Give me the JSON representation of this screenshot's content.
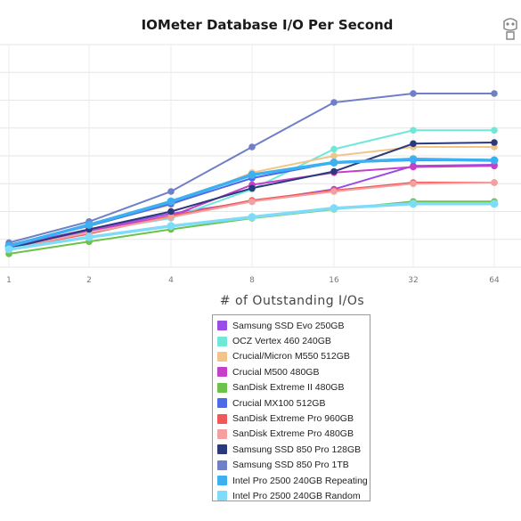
{
  "chart_data": {
    "type": "line",
    "title": "IOMeter Database I/O Per Second",
    "xlabel": "# of Outstanding I/Os",
    "ylabel": "",
    "categories": [
      "1",
      "2",
      "4",
      "8",
      "16",
      "32",
      "64"
    ],
    "ylim": [
      0,
      100000
    ],
    "grid": true,
    "legend_position": "bottom",
    "series": [
      {
        "name": "Samsung SSD Evo 250GB",
        "color": "#9b4be8",
        "values": [
          9500,
          17000,
          24000,
          29500,
          35000,
          45500,
          46000
        ]
      },
      {
        "name": "OCZ Vertex 460 240GB",
        "color": "#6fe8d8",
        "values": [
          9000,
          16000,
          22000,
          35000,
          53000,
          61500,
          61500
        ]
      },
      {
        "name": "Crucial/Micron M550 512GB",
        "color": "#f2c48a",
        "values": [
          9500,
          19000,
          28000,
          42500,
          50000,
          54000,
          54000
        ]
      },
      {
        "name": "Crucial M500 480GB",
        "color": "#c53fc8",
        "values": [
          9000,
          16500,
          23000,
          37000,
          42500,
          45000,
          45500
        ]
      },
      {
        "name": "SanDisk Extreme II 480GB",
        "color": "#6cc24a",
        "values": [
          6000,
          11500,
          17000,
          22000,
          26000,
          29500,
          29500
        ]
      },
      {
        "name": "Crucial MX100 512GB",
        "color": "#4a6ae8",
        "values": [
          10000,
          18500,
          28500,
          40000,
          47000,
          48000,
          48000
        ]
      },
      {
        "name": "SanDisk Extreme Pro 960GB",
        "color": "#ee5a5a",
        "values": [
          8500,
          15000,
          23000,
          30000,
          34500,
          38000,
          38000
        ]
      },
      {
        "name": "SanDisk Extreme Pro 480GB",
        "color": "#f4a0a0",
        "values": [
          8500,
          15500,
          22500,
          29500,
          34000,
          37500,
          38000
        ]
      },
      {
        "name": "Samsung SSD 850 Pro 128GB",
        "color": "#2b3a7c",
        "values": [
          8500,
          17000,
          25000,
          35500,
          43000,
          55500,
          56000
        ]
      },
      {
        "name": "Samsung SSD 850 Pro 1TB",
        "color": "#6f7fc8",
        "values": [
          11000,
          20500,
          34000,
          54000,
          74000,
          78000,
          78000
        ]
      },
      {
        "name": "Intel Pro 2500 240GB Repeating",
        "color": "#3cb0f0",
        "values": [
          9500,
          19000,
          29500,
          41500,
          47000,
          48500,
          48000
        ]
      },
      {
        "name": "Intel Pro 2500 240GB Random",
        "color": "#7fdcf8",
        "values": [
          8000,
          13500,
          18500,
          22500,
          26500,
          28500,
          28500
        ]
      }
    ]
  },
  "logo": {
    "name": "watermark-logo-icon"
  }
}
